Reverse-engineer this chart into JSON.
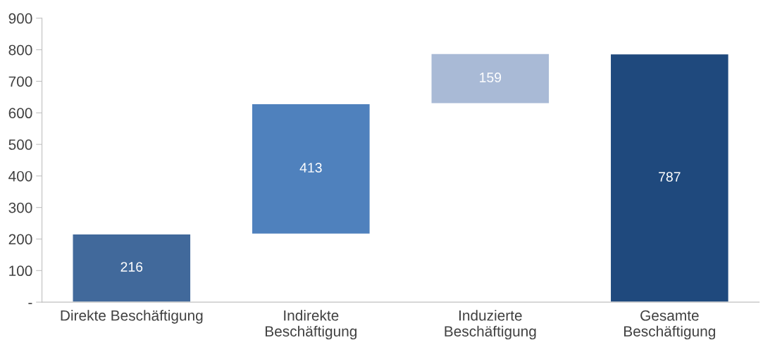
{
  "chart_data": {
    "type": "bar",
    "categories": [
      "Direkte Beschäftigung",
      "Indirekte\nBeschäftigung",
      "Induzierte\nBeschäftigung",
      "Gesamte\nBeschäftigung"
    ],
    "values": [
      216,
      413,
      159,
      787
    ],
    "base": [
      0,
      216,
      629,
      0
    ],
    "colors": [
      "#41699b",
      "#4f81bd",
      "#a9bad6",
      "#1f497d"
    ],
    "ylim": [
      0,
      900
    ],
    "yticks": [
      {
        "value": 0,
        "label": "-"
      },
      100,
      200,
      300,
      400,
      500,
      600,
      700,
      800,
      900
    ],
    "data_labels": true,
    "grid": false,
    "legend": false
  }
}
